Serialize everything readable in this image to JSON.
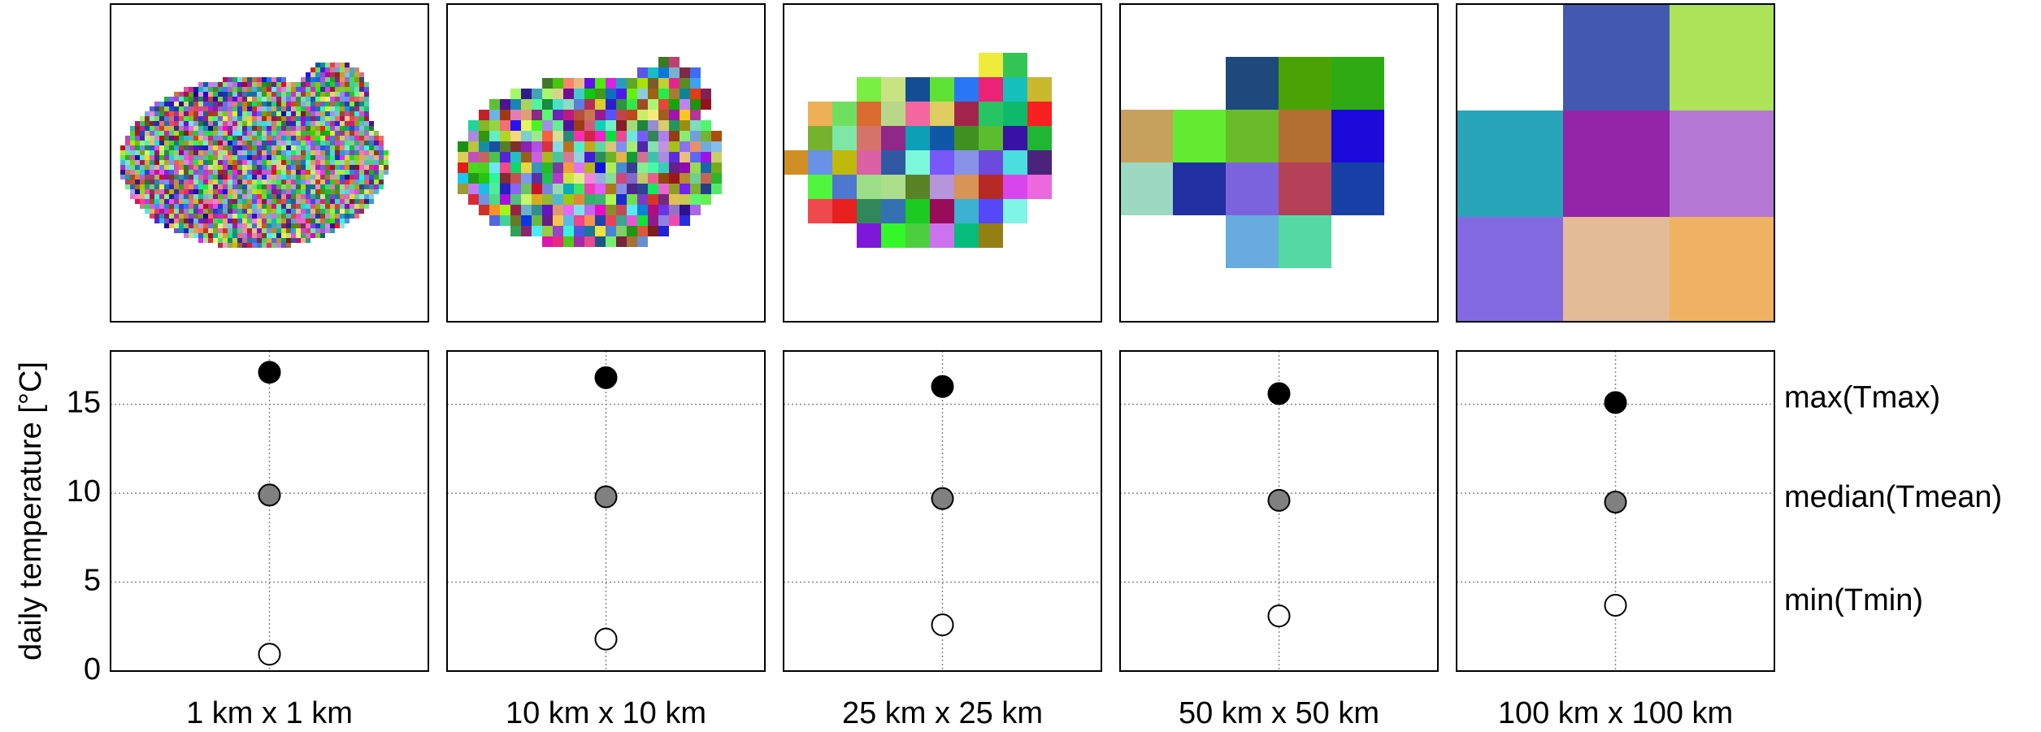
{
  "chart_data": {
    "type": "dot",
    "ylabel": "daily temperature [°C]",
    "categories": [
      "1 km x 1 km",
      "10 km x 10 km",
      "25 km x 25 km",
      "50 km x 50 km",
      "100 km x 100 km"
    ],
    "series": [
      {
        "name": "max(Tmax)",
        "color": "#000000",
        "values": [
          16.8,
          16.5,
          16.0,
          15.6,
          15.1
        ]
      },
      {
        "name": "median(Tmean)",
        "color": "#808080",
        "values": [
          9.9,
          9.8,
          9.7,
          9.6,
          9.5
        ]
      },
      {
        "name": "min(Tmin)",
        "color": "#ffffff",
        "values": [
          0.95,
          1.8,
          2.6,
          3.1,
          3.7
        ]
      }
    ],
    "ylim": [
      0,
      18
    ],
    "yticks": [
      0,
      5,
      10,
      15
    ],
    "grid": true
  }
}
